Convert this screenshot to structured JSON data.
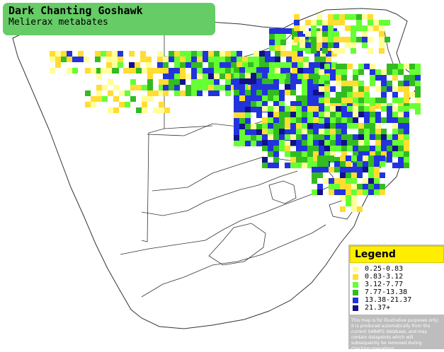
{
  "title": {
    "common_name": "Dark Chanting Goshawk",
    "scientific_name": "Melierax metabates"
  },
  "legend": {
    "heading": "Legend",
    "items": [
      {
        "label": "0.25-0.83",
        "color": "#ffff99"
      },
      {
        "label": "0.83-3.12",
        "color": "#ffdd33"
      },
      {
        "label": "3.12-7.77",
        "color": "#66ff33"
      },
      {
        "label": "7.77-13.38",
        "color": "#33bb22"
      },
      {
        "label": "13.38-21.37",
        "color": "#2233dd"
      },
      {
        "label": "21.37+",
        "color": "#111188"
      }
    ],
    "disclaimer": "This map is for illustrative purposes only; it is produced automatically from the current SABAP2 database, and may contain datapoints which will subsequently be removed during checking operations."
  },
  "colors": {
    "title_bg": "#66cc66",
    "legend_heading_bg": "#ffee00",
    "legend_panel_bg": "#bdbdbd",
    "map_border": "#333333"
  }
}
